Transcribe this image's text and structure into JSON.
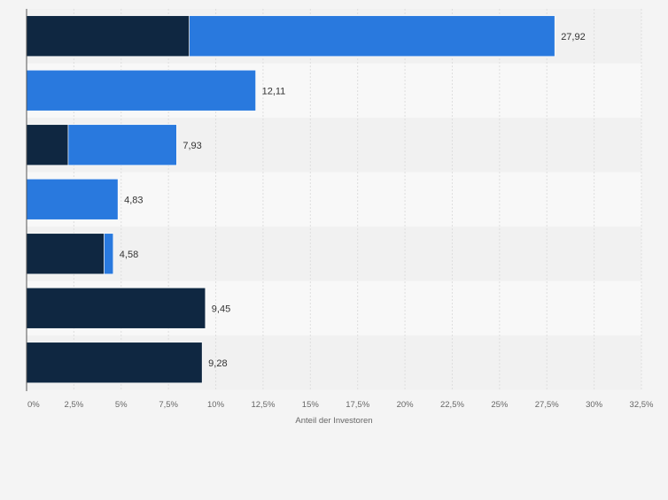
{
  "colors": {
    "background": "#f4f4f4",
    "band_light": "#f8f8f8",
    "band_dark": "#f1f1f1",
    "grid": "#dedede",
    "axis": "#555555",
    "series_dark": "#0f2741",
    "series_blue": "#2979de",
    "tick_text": "#666666",
    "value_text": "#333333"
  },
  "chart_data": {
    "type": "bar",
    "orientation": "horizontal",
    "stacked": true,
    "categories": [
      "",
      "",
      "",
      "",
      "",
      "",
      ""
    ],
    "series": [
      {
        "values": [
          8.6,
          0,
          2.2,
          0,
          4.1,
          9.45,
          9.28
        ],
        "color": "#0f2741"
      },
      {
        "values": [
          19.32,
          12.11,
          5.73,
          4.83,
          0.48,
          0,
          0
        ],
        "color": "#2979de"
      }
    ],
    "totals_labels": [
      "27,92",
      "12,11",
      "7,93",
      "4,83",
      "4,58",
      "9,45",
      "9,28"
    ],
    "xlabel": "Anteil der Investoren",
    "xlim": [
      0,
      32.5
    ],
    "xticks": [
      0,
      2.5,
      5,
      7.5,
      10,
      12.5,
      15,
      17.5,
      20,
      22.5,
      25,
      27.5,
      30,
      32.5
    ],
    "xtick_labels": [
      "0%",
      "2,5%",
      "5%",
      "7,5%",
      "10%",
      "12,5%",
      "15%",
      "17,5%",
      "20%",
      "22,5%",
      "25%",
      "27,5%",
      "30%",
      "32,5%"
    ],
    "grid": true
  }
}
